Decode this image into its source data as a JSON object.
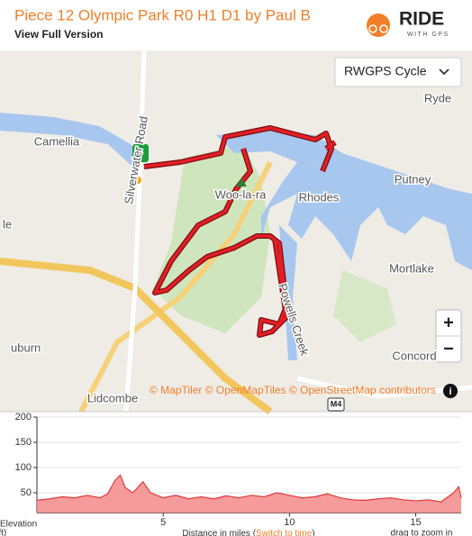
{
  "header": {
    "title": "Piece 12 Olympic Park R0 H1 D1 by Paul B",
    "link": "View Full Version",
    "logo": "RIDE",
    "logo_sub": "WITH GPS"
  },
  "map": {
    "style_select": "RWGPS Cycle",
    "labels": [
      "Ryde",
      "Camellia",
      "Putney",
      "Rhodes",
      "Woo-la-ra",
      "Mortlake",
      "Concord",
      "Lidcombe",
      "uburn",
      "le",
      "Silverwater Road",
      "Powells Creek",
      "M4"
    ],
    "attribution": "© MapTiler © OpenMapTiles © OpenStreetMap contributors",
    "zoom_in": "+",
    "zoom_out": "−",
    "info": "i"
  },
  "chart_data": {
    "type": "area",
    "color": "#e03a3a",
    "x": [
      0,
      0.5,
      1,
      1.5,
      2,
      2.5,
      2.8,
      3.1,
      3.3,
      3.5,
      3.8,
      4.2,
      4.5,
      5,
      5.5,
      6,
      6.5,
      7,
      7.5,
      8,
      8.5,
      9,
      9.5,
      10,
      10.5,
      11,
      11.5,
      12,
      12.5,
      13,
      13.5,
      14,
      14.5,
      15,
      15.5,
      16,
      16.5,
      16.7,
      16.8
    ],
    "values": [
      35,
      38,
      42,
      40,
      45,
      40,
      48,
      75,
      85,
      60,
      50,
      72,
      50,
      40,
      45,
      38,
      42,
      38,
      44,
      40,
      45,
      42,
      50,
      45,
      40,
      42,
      48,
      40,
      36,
      35,
      38,
      40,
      36,
      34,
      36,
      32,
      50,
      62,
      40
    ],
    "xlim": [
      0,
      16.8
    ],
    "ylim": [
      10,
      200
    ],
    "xticks": [
      5,
      10,
      15
    ],
    "yticks": [
      50,
      100,
      150,
      200
    ],
    "grid": true,
    "y_label": [
      "Elevation",
      "(ft)"
    ],
    "x_label": [
      "Distance in miles (",
      "Switch to time",
      ")"
    ],
    "hint": "drag to zoom in"
  }
}
